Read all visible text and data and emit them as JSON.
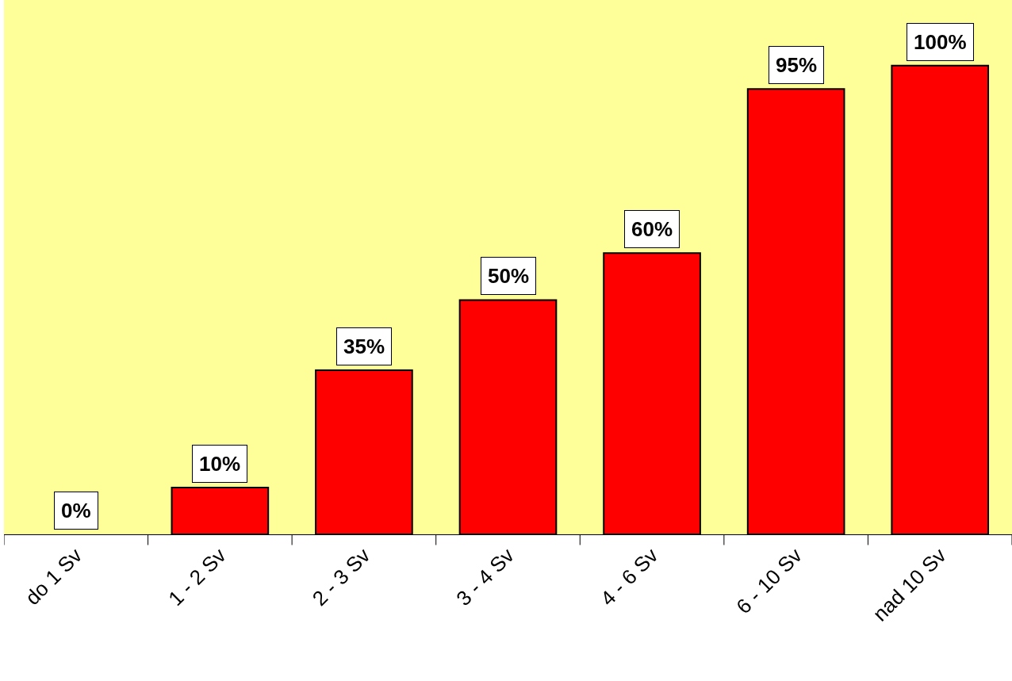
{
  "chart_data": {
    "type": "bar",
    "categories": [
      "do 1 Sv",
      "1 - 2 Sv",
      "2 - 3 Sv",
      "3 - 4 Sv",
      "4 - 6 Sv",
      "6 - 10 Sv",
      "nad 10 Sv"
    ],
    "values": [
      0,
      10,
      35,
      50,
      60,
      95,
      100
    ],
    "value_labels": [
      "0%",
      "10%",
      "35%",
      "50%",
      "60%",
      "95%",
      "100%"
    ],
    "color": "#ff0000",
    "grid": false
  }
}
